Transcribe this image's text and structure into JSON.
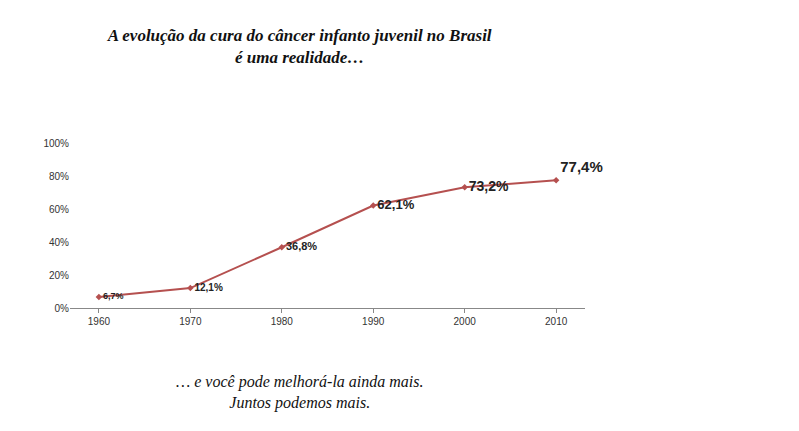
{
  "chart_data": {
    "type": "line",
    "title": [
      "A evolução da cura do câncer infanto juvenil no Brasil",
      "é uma realidade…"
    ],
    "annotations": [
      "… e você pode melhorá-la ainda mais.",
      "Juntos podemos mais."
    ],
    "categories": [
      "1960",
      "1970",
      "1980",
      "1990",
      "2000",
      "2010"
    ],
    "values": [
      6.7,
      12.1,
      36.8,
      62.1,
      73.2,
      77.4
    ],
    "value_labels": [
      "6,7%",
      "12,1%",
      "36,8%",
      "62,1%",
      "73,2%",
      "77,4%"
    ],
    "data_labels": true,
    "color": "#b5504f",
    "marker": "diamond",
    "ylim": [
      0,
      100
    ],
    "yticks": [
      {
        "value": 0,
        "label": "0%"
      },
      {
        "value": 20,
        "label": "20%"
      },
      {
        "value": 40,
        "label": "40%"
      },
      {
        "value": 60,
        "label": "60%"
      },
      {
        "value": 80,
        "label": "80%"
      },
      {
        "value": 100,
        "label": "100%"
      }
    ],
    "grid": false
  }
}
